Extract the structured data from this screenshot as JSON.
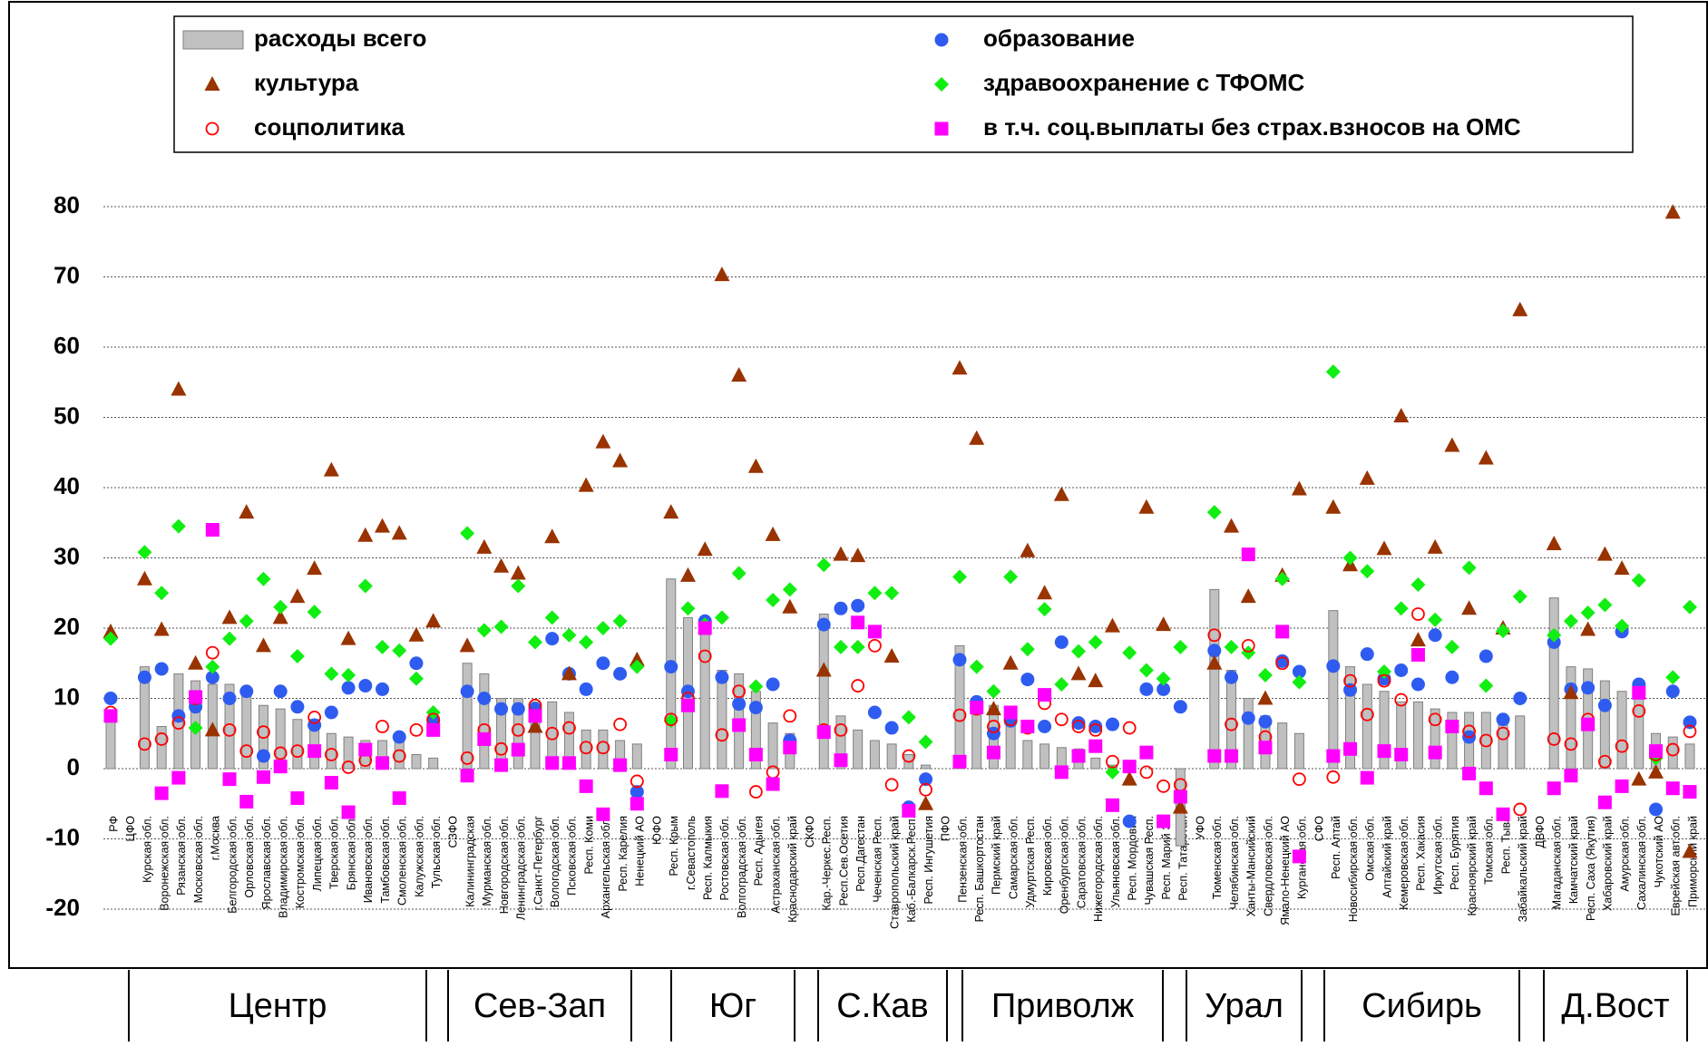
{
  "chart_data": {
    "type": "bar-marker-combo",
    "categories": [
      "РФ",
      "ЦФО",
      "Курская обл.",
      "Воронежская обл.",
      "Рязанская обл.",
      "Московская обл.",
      "г.Москва",
      "Белгородская обл.",
      "Орловская обл.",
      "Ярославская обл.",
      "Владимирская обл.",
      "Костромская обл.",
      "Липецкая обл.",
      "Тверская обл.",
      "Брянская обл.",
      "Ивановская обл.",
      "Тамбовская обл.",
      "Смоленская обл.",
      "Калужская обл.",
      "Тульская обл.",
      "СЗФО",
      "Калининградская",
      "Мурманская обл.",
      "Новгородская обл.",
      "Ленинградская обл.",
      "г.Санкт-Петербург",
      "Вологодская обл.",
      "Псковская обл.",
      "Респ. Коми",
      "Архангельская обл.",
      "Респ. Карелия",
      "Ненецкий АО",
      "ЮФО",
      "Респ. Крым",
      "г.Севастополь",
      "Респ. Калмыкия",
      "Ростовская обл.",
      "Волгоградская обл.",
      "Респ. Адыгея",
      "Астраханская обл.",
      "Краснодарский край",
      "СКФО",
      "Кар.-Черкес.Респ.",
      "Респ.Сев.Осетия",
      "Респ.Дагестан",
      "Чеченская Респ.",
      "Ставропольский край",
      "Каб.-Балкарск.Респ.",
      "Респ. Ингушетия",
      "ПФО",
      "Пензенская обл.",
      "Респ. Башкортостан",
      "Пермский край",
      "Самарская обл.",
      "Удмуртская Респ.",
      "Кировская обл.",
      "Оренбургская обл.",
      "Саратовская обл.",
      "Нижегородская обл.",
      "Ульяновская обл.",
      "Респ. Мордовия",
      "Чувашская Респ.",
      "Респ. Марий Эл",
      "Респ. Татарстан",
      "УФО",
      "Тюменская обл.",
      "Челябинская обл.",
      "Ханты-Мансийский",
      "Свердловская обл.",
      "Ямало-Ненецкий АО",
      "Курганская обл.",
      "СФО",
      "Респ. Алтай",
      "Новосибирская обл.",
      "Омская обл.",
      "Алтайский край",
      "Кемеровская обл.",
      "Респ. Хакасия",
      "Иркутская обл.",
      "Респ. Бурятия",
      "Красноярский край",
      "Томская обл.",
      "Респ. Тыва",
      "Забайкальский край",
      "ДВФО",
      "Магаданская обл.",
      "Камчатский край",
      "Респ. Саха (Якутия)",
      "Хабаровский край",
      "Амурская обл.",
      "Сахалинская обл.",
      "Чукотский АО",
      "Еврейская авт.обл.",
      "Приморский край"
    ],
    "series": [
      {
        "name": "расходы всего",
        "kind": "bar",
        "color": "#c0c0c0",
        "values": [
          8,
          null,
          14.5,
          6,
          13.5,
          12.5,
          12,
          12,
          11,
          9,
          8.5,
          7,
          7,
          5,
          4.5,
          4,
          4,
          4,
          2,
          1.5,
          null,
          15,
          13.5,
          10,
          10,
          9.5,
          9.5,
          8,
          5.5,
          5.5,
          4,
          3.5,
          null,
          27,
          21.5,
          21,
          14,
          13.5,
          11,
          6.5,
          5,
          null,
          22,
          7.5,
          5.5,
          4,
          3.5,
          2,
          0.5,
          null,
          17.5,
          10,
          9,
          7.5,
          4,
          3.5,
          3,
          2.8,
          1.5,
          0.5,
          0.3,
          null,
          null,
          -11,
          null,
          25.5,
          14,
          10,
          7.5,
          6.5,
          5,
          null,
          22.5,
          14.5,
          12,
          11,
          9.5,
          9.5,
          8.5,
          8,
          8,
          8,
          7.5,
          7.5,
          null,
          24.3,
          14.5,
          14.2,
          12.5,
          11,
          10,
          5,
          4.5,
          3.5
        ]
      },
      {
        "name": "образование",
        "kind": "circle",
        "color": "#2f5cf0",
        "values": [
          10,
          null,
          13,
          14.2,
          7.5,
          8.8,
          13,
          10,
          11,
          1.8,
          11,
          8.8,
          6.2,
          8,
          11.5,
          11.8,
          11.3,
          4.5,
          15,
          6.8,
          null,
          11,
          10,
          8.5,
          8.5,
          8.5,
          18.5,
          13.5,
          11.3,
          15,
          13.5,
          -3.3,
          null,
          14.5,
          11,
          21,
          13,
          9.2,
          8.7,
          12,
          4,
          null,
          20.5,
          22.8,
          23.2,
          8,
          5.8,
          -5.5,
          -1.5,
          null,
          15.5,
          9.5,
          5,
          6.8,
          12.7,
          6,
          18,
          6.5,
          6,
          6.3,
          -7.5,
          11.3,
          11.3,
          8.8,
          null,
          16.8,
          13,
          7.2,
          6.7,
          15.3,
          13.8,
          null,
          14.6,
          11.2,
          16.3,
          12.8,
          14,
          12,
          19,
          13,
          4.5,
          16,
          7,
          10,
          null,
          18,
          11.3,
          11.5,
          9,
          19.5,
          12,
          -5.8,
          11,
          6.6
        ]
      },
      {
        "name": "культура",
        "kind": "triangle",
        "color": "#993300",
        "values": [
          19.5,
          null,
          27,
          19.8,
          54,
          15,
          5.5,
          21.5,
          36.5,
          17.5,
          21.5,
          24.5,
          28.5,
          42.5,
          18.5,
          33.2,
          34.5,
          33.5,
          19,
          21,
          null,
          17.5,
          31.5,
          28.8,
          27.8,
          6,
          33,
          13.5,
          40.3,
          46.5,
          43.8,
          15.5,
          null,
          36.5,
          27.5,
          31.2,
          70.3,
          56,
          43,
          33.3,
          23,
          null,
          14,
          30.5,
          30.3,
          null,
          16,
          null,
          -5,
          null,
          57,
          47,
          8.5,
          15,
          31,
          25,
          39,
          13.5,
          12.5,
          20.3,
          -1.5,
          37.2,
          20.5,
          -5.5,
          null,
          15,
          34.5,
          24.5,
          10,
          27.5,
          39.8,
          null,
          37.2,
          29,
          41.3,
          31.3,
          50.2,
          18.3,
          31.5,
          46,
          22.8,
          44.2,
          20,
          65.3,
          null,
          32,
          10.8,
          19.8,
          30.5,
          28.5,
          -1.5,
          -0.5,
          79.2,
          -11.8
        ]
      },
      {
        "name": "здравоохранение с ТФОМС",
        "kind": "diamond",
        "color": "#11ee11",
        "values": [
          18.5,
          null,
          30.8,
          25,
          34.5,
          5.8,
          14.5,
          18.5,
          21,
          27,
          23,
          16,
          22.3,
          13.5,
          13.3,
          26,
          17.3,
          16.8,
          12.8,
          8,
          null,
          33.5,
          19.7,
          20.2,
          26,
          18,
          21.5,
          19,
          18,
          20,
          21,
          14.5,
          null,
          6.8,
          22.8,
          20.5,
          21.5,
          27.8,
          11.7,
          24,
          25.5,
          null,
          29,
          17.3,
          17.3,
          25,
          25,
          7.3,
          3.8,
          null,
          27.3,
          14.5,
          11,
          27.3,
          17,
          22.7,
          12,
          16.7,
          18,
          -0.5,
          16.5,
          14,
          12.8,
          17.3,
          null,
          36.5,
          17.3,
          16.5,
          13.3,
          27,
          12.3,
          null,
          56.5,
          30,
          28.1,
          13.8,
          22.8,
          26.2,
          21.2,
          17.3,
          28.6,
          11.8,
          19.6,
          24.5,
          null,
          19,
          21,
          22.2,
          23.3,
          20.3,
          26.8,
          1.5,
          13,
          23
        ]
      },
      {
        "name": "соцполитика",
        "kind": "ring",
        "color": "#ff0000",
        "values": [
          8,
          null,
          3.5,
          4.2,
          6.5,
          10,
          16.5,
          5.5,
          2.5,
          5.2,
          2.2,
          2.5,
          7.3,
          2,
          0.2,
          1.2,
          6,
          1.8,
          5.5,
          7,
          null,
          1.5,
          5.5,
          2.8,
          5.5,
          9,
          5,
          5.8,
          3,
          3,
          6.3,
          -1.8,
          null,
          7,
          10,
          16,
          4.8,
          11,
          -3.3,
          -0.5,
          7.5,
          null,
          5.5,
          5.5,
          11.8,
          17.5,
          -2.3,
          1.8,
          -3,
          null,
          7.6,
          8.5,
          6,
          7,
          5.8,
          9.3,
          7,
          6,
          5.5,
          1,
          5.8,
          -0.5,
          -2.5,
          -2.3,
          null,
          19,
          6.3,
          17.5,
          4.5,
          15,
          -1.5,
          null,
          -1.2,
          12.5,
          7.7,
          12.5,
          9.8,
          22,
          7,
          6,
          5.3,
          4,
          5,
          -5.8,
          null,
          4.2,
          3.5,
          7,
          1,
          3.2,
          8.2,
          2,
          2.7,
          5.3
        ]
      },
      {
        "name": "в т.ч. соц.выплаты без страх.взносов на ОМС",
        "kind": "square",
        "color": "#ff00ff",
        "values": [
          7.5,
          null,
          null,
          -3.5,
          -1.3,
          10.2,
          34,
          -1.5,
          -4.7,
          -1.2,
          0.3,
          -4.2,
          2.5,
          -2,
          -6.2,
          2.7,
          0.8,
          -4.2,
          null,
          5.5,
          null,
          -1,
          4.2,
          0.5,
          2.7,
          7.5,
          0.8,
          0.8,
          -2.5,
          -6.5,
          0.5,
          -5,
          null,
          2,
          9,
          20,
          -3.2,
          6.2,
          2,
          -2.2,
          3,
          null,
          5.2,
          1.2,
          20.8,
          19.5,
          null,
          -6,
          null,
          null,
          1,
          8.7,
          2.3,
          8,
          6,
          10.5,
          -0.5,
          1.8,
          3.2,
          -5.2,
          0.3,
          2.3,
          -7.5,
          -4,
          null,
          1.8,
          1.8,
          30.5,
          3,
          19.5,
          -12.5,
          null,
          1.8,
          2.8,
          -1.3,
          2.5,
          2,
          16.2,
          2.3,
          6,
          -0.7,
          -2.8,
          -6.5,
          null,
          null,
          -2.8,
          -1,
          6.3,
          -4.8,
          -2.5,
          10.8,
          2.5,
          -2.8,
          -3.3
        ]
      }
    ],
    "ylim": [
      -20,
      80
    ],
    "yticks": [
      -20,
      -10,
      0,
      10,
      20,
      30,
      40,
      50,
      60,
      70,
      80
    ],
    "grid": true,
    "groups": [
      "Центр",
      "Сев-Зап",
      "Юг",
      "С.Кав",
      "Приволж",
      "Урал",
      "Сибирь",
      "Д.Вост"
    ]
  }
}
